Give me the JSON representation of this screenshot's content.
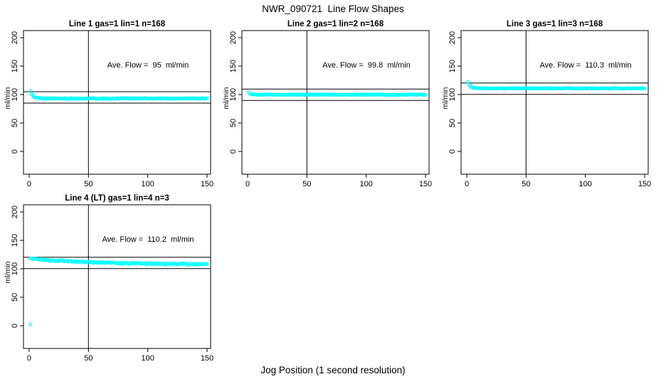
{
  "page": {
    "title": "NWR_090721  Line Flow Shapes",
    "xlabel": "Jog Position (1 second resolution)",
    "background": "#ffffff",
    "point_color": "#00ffff",
    "line_color": "#000000"
  },
  "chart_data": [
    {
      "type": "scatter",
      "title": "Line 1 gas=1 lin=1 n=168",
      "ylabel": "ml/min",
      "annotation": "Ave. Flow =  95  ml/min",
      "ave_flow_ml_min": 95,
      "x_ticks": [
        0,
        50,
        100,
        150
      ],
      "y_ticks": [
        0,
        50,
        100,
        150,
        200
      ],
      "xlim": [
        -5,
        153
      ],
      "ylim": [
        -40,
        212
      ],
      "ref_lines": {
        "h": [
          105,
          85
        ],
        "v": [
          50
        ]
      },
      "point_color": "#00ffff",
      "series": {
        "name": "flow",
        "model": "exp_settle",
        "x_start": 1,
        "x_end": 150,
        "start_y": 106,
        "settle_y": 93.2,
        "tau": 2.0,
        "jitter": 0.7,
        "seed": 11,
        "outliers": []
      }
    },
    {
      "type": "scatter",
      "title": "Line 2 gas=1 lin=2 n=168",
      "ylabel": "ml/min",
      "annotation": "Ave. Flow =  99.8  ml/min",
      "ave_flow_ml_min": 99.8,
      "x_ticks": [
        0,
        50,
        100,
        150
      ],
      "y_ticks": [
        0,
        50,
        100,
        150,
        200
      ],
      "xlim": [
        -5,
        153
      ],
      "ylim": [
        -40,
        212
      ],
      "ref_lines": {
        "h": [
          109.8,
          89.8
        ],
        "v": [
          50
        ]
      },
      "point_color": "#00ffff",
      "series": {
        "name": "flow",
        "model": "exp_settle",
        "x_start": 1,
        "x_end": 150,
        "start_y": 104,
        "settle_y": 99.9,
        "tau": 1.5,
        "jitter": 0.6,
        "seed": 22,
        "outliers": []
      }
    },
    {
      "type": "scatter",
      "title": "Line 3 gas=1 lin=3 n=168",
      "ylabel": "ml/min",
      "annotation": "Ave. Flow =  110.3  ml/min",
      "ave_flow_ml_min": 110.3,
      "x_ticks": [
        0,
        50,
        100,
        150
      ],
      "y_ticks": [
        0,
        50,
        100,
        150,
        200
      ],
      "xlim": [
        -5,
        153
      ],
      "ylim": [
        -40,
        212
      ],
      "ref_lines": {
        "h": [
          120.3,
          100.3
        ],
        "v": [
          50
        ]
      },
      "point_color": "#00ffff",
      "series": {
        "name": "flow",
        "model": "exp_settle",
        "x_start": 2,
        "x_end": 150,
        "start_y": 116,
        "settle_y": 111,
        "tau": 2.0,
        "jitter": 0.7,
        "seed": 33,
        "outliers": [
          [
            1,
            122
          ]
        ]
      }
    },
    {
      "type": "scatter",
      "title": "Line 4 (LT) gas=1 lin=4 n=3",
      "ylabel": "ml/min",
      "annotation": "Ave. Flow =  110.2  ml/min",
      "ave_flow_ml_min": 110.2,
      "x_ticks": [
        0,
        50,
        100,
        150
      ],
      "y_ticks": [
        0,
        50,
        100,
        150,
        200
      ],
      "xlim": [
        -5,
        153
      ],
      "ylim": [
        -40,
        212
      ],
      "ref_lines": {
        "h": [
          120.2,
          100.2
        ],
        "v": [
          50
        ]
      },
      "point_color": "#00ffff",
      "series": {
        "name": "flow",
        "model": "exp_settle",
        "x_start": 1,
        "x_end": 150,
        "start_y": 118,
        "settle_y": 107,
        "tau": 60,
        "jitter": 1.3,
        "seed": 44,
        "outliers": [
          [
            1,
            2
          ]
        ]
      }
    }
  ]
}
